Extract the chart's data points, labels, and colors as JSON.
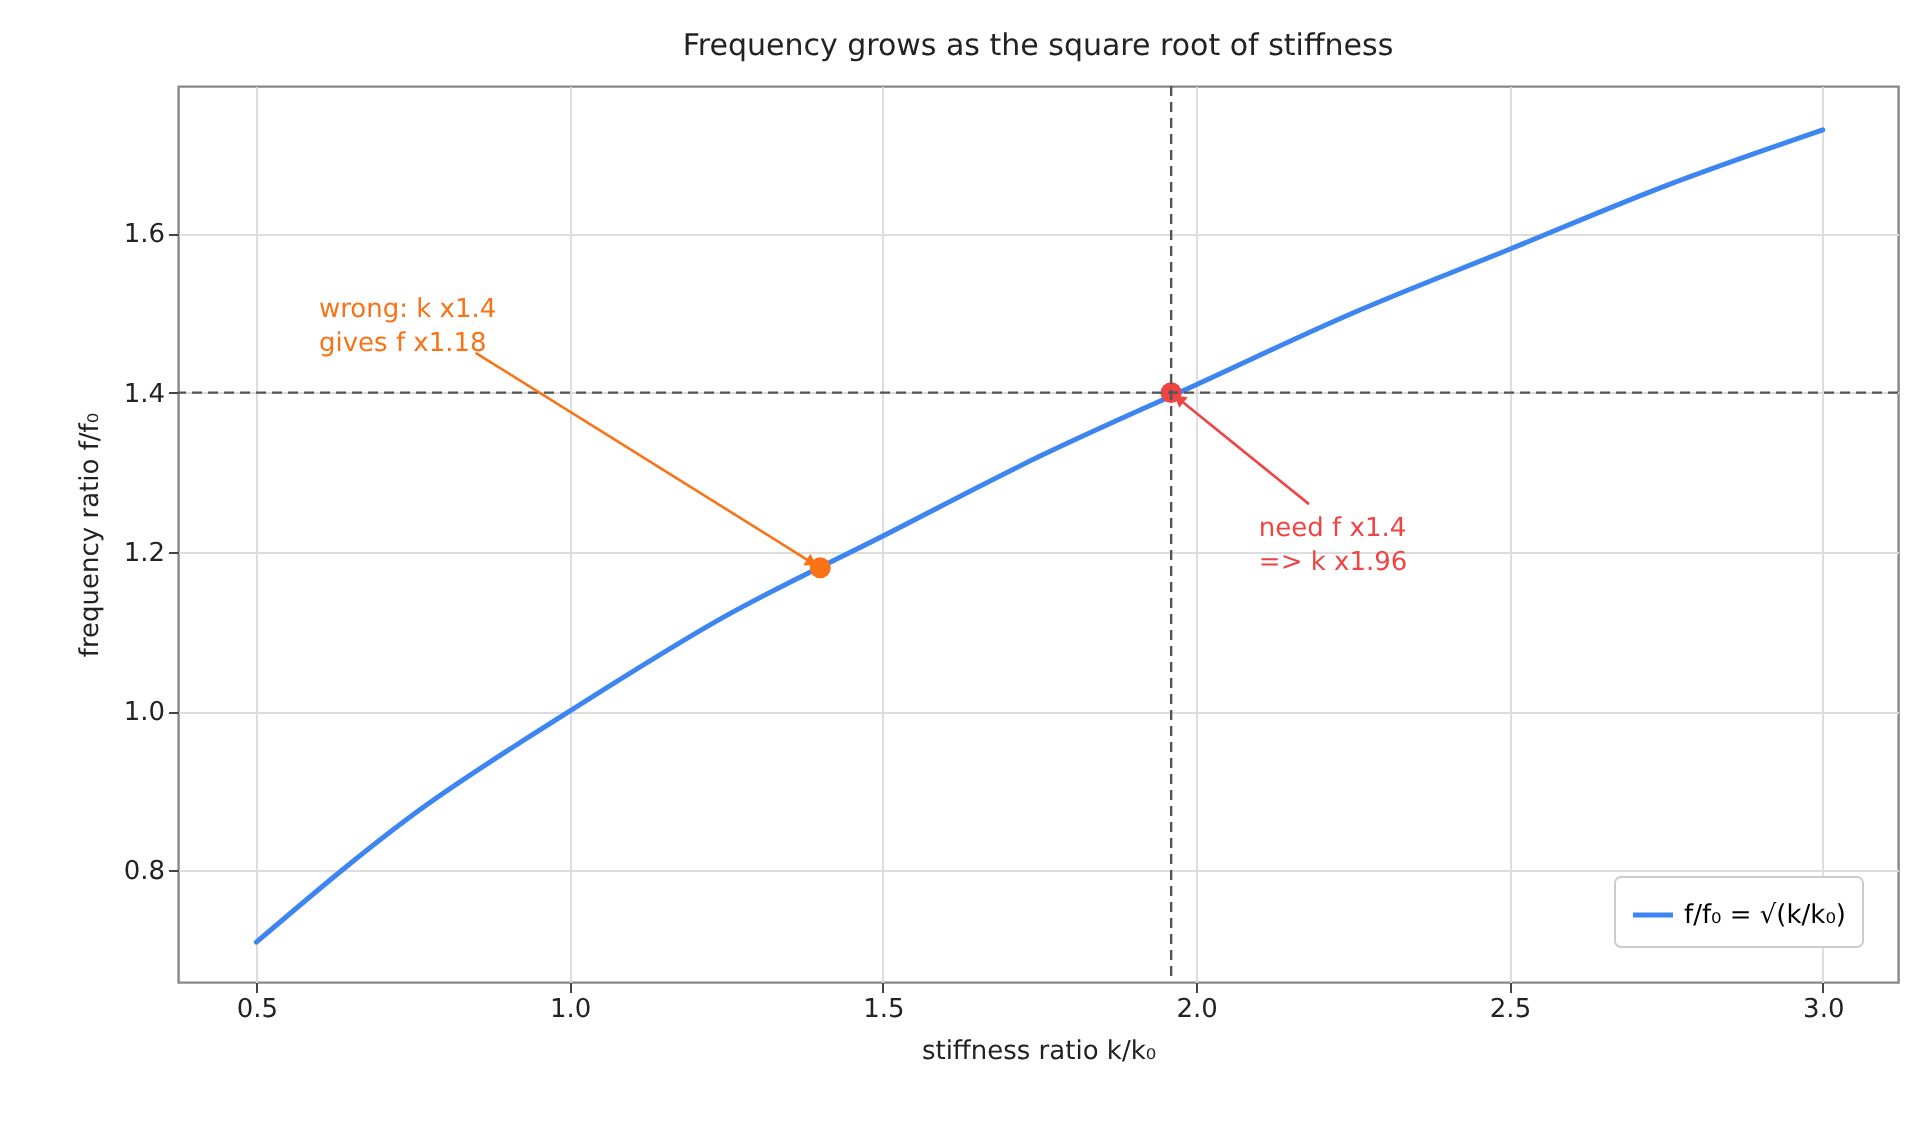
{
  "chart_data": {
    "type": "line",
    "title": "Frequency grows as the square root of stiffness",
    "xlabel": "stiffness ratio  k/k₀",
    "ylabel": "frequency ratio  f/f₀",
    "series": [
      {
        "name": "f/f₀ = √(k/k₀)",
        "color": "#3d85f0",
        "x": [
          0.5,
          0.75,
          1.0,
          1.25,
          1.5,
          1.75,
          2.0,
          2.25,
          2.5,
          2.75,
          3.0
        ],
        "values": [
          0.71,
          0.87,
          1.0,
          1.12,
          1.22,
          1.32,
          1.41,
          1.5,
          1.58,
          1.66,
          1.73
        ]
      },
      {
        "type": "scatter",
        "color": "#f97316",
        "x": [
          1.4
        ],
        "values": [
          1.18
        ]
      },
      {
        "type": "scatter",
        "color": "#ef4444",
        "x": [
          1.96
        ],
        "values": [
          1.4
        ]
      }
    ],
    "annotations": [
      {
        "text": "wrong: k x1.4\ngives f x1.18",
        "x": 1.4,
        "y": 1.18
      },
      {
        "text": "need f x1.4\n=> k x1.96",
        "x": 1.96,
        "y": 1.4
      }
    ],
    "ref_lines": [
      {
        "axis": "x",
        "value": 1.96,
        "color": "#555555",
        "line_style": "dashed"
      },
      {
        "axis": "y",
        "value": 1.4,
        "color": "#555555",
        "line_style": "dashed"
      }
    ],
    "xlim": [
      0.375,
      3.12
    ],
    "ylim": [
      0.66,
      1.785
    ],
    "xticks": [
      0.5,
      {
        "value": 1,
        "label": "1.0"
      },
      1.5,
      {
        "value": 2,
        "label": "2.0"
      },
      2.5,
      {
        "value": 3,
        "label": "3.0"
      }
    ],
    "yticks": [
      0.8,
      {
        "value": 1,
        "label": "1.0"
      },
      1.2,
      1.4,
      1.6
    ],
    "grid": true,
    "legend": "bottom right"
  }
}
